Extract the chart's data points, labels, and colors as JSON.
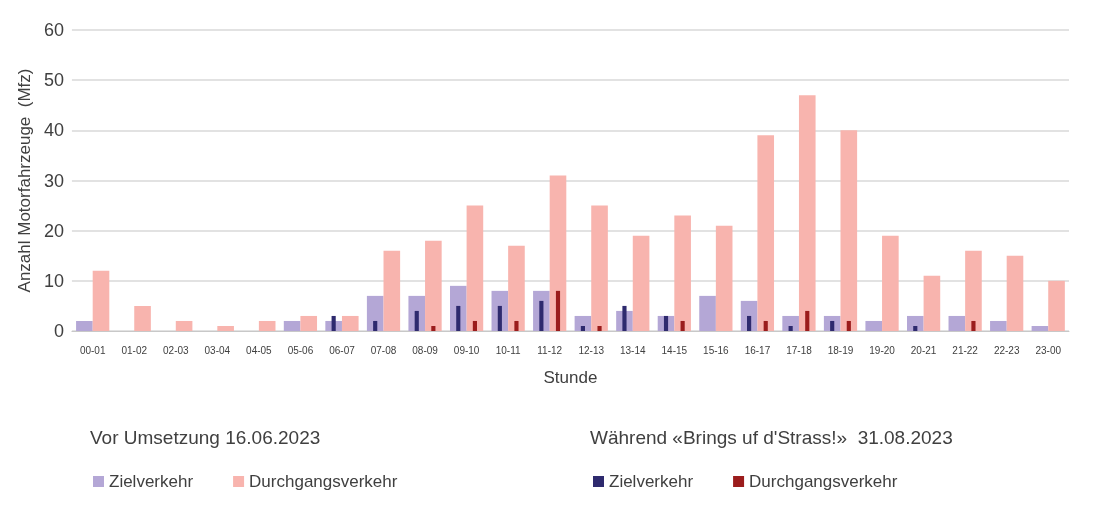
{
  "chart_data": {
    "type": "bar",
    "xlabel": "Stunde",
    "ylabel": "Anzahl Motorfahrzeuge  (Mfz)",
    "categories": [
      "00-01",
      "01-02",
      "02-03",
      "03-04",
      "04-05",
      "05-06",
      "06-07",
      "07-08",
      "08-09",
      "09-10",
      "10-11",
      "11-12",
      "12-13",
      "13-14",
      "14-15",
      "15-16",
      "16-17",
      "17-18",
      "18-19",
      "19-20",
      "20-21",
      "21-22",
      "22-23",
      "23-00"
    ],
    "series": [
      {
        "name": "Zielverkehr",
        "color": "#b4a7d6",
        "values": [
          2,
          0,
          0,
          0,
          0,
          2,
          2,
          7,
          7,
          9,
          8,
          8,
          3,
          4,
          3,
          7,
          6,
          3,
          3,
          2,
          3,
          3,
          2,
          1
        ]
      },
      {
        "name": "Durchgangsverkehr",
        "color": "#f8b4ae",
        "values": [
          12,
          5,
          2,
          1,
          2,
          3,
          3,
          16,
          18,
          25,
          17,
          31,
          25,
          19,
          23,
          21,
          39,
          47,
          40,
          19,
          11,
          16,
          15,
          10
        ]
      },
      {
        "name": "Zielverkehr",
        "color": "#2e2a6e",
        "values": [
          0,
          0,
          0,
          0,
          0,
          0,
          3,
          2,
          4,
          5,
          5,
          6,
          1,
          5,
          3,
          0,
          3,
          1,
          2,
          0,
          1,
          0,
          0,
          0
        ]
      },
      {
        "name": "Durchgangsverkehr",
        "color": "#9b1c1c",
        "values": [
          0,
          0,
          0,
          0,
          0,
          0,
          0,
          0,
          1,
          2,
          2,
          8,
          1,
          0,
          2,
          0,
          2,
          4,
          2,
          0,
          0,
          2,
          0,
          0
        ]
      }
    ],
    "annotations": [
      "Vor Umsetzung 16.06.2023",
      "Während «Brings uf d'Strass!»  31.08.2023"
    ],
    "ylim": [
      0,
      60
    ],
    "yticks": [
      0,
      10,
      20,
      30,
      40,
      50,
      60
    ],
    "grid": "y",
    "legend": "bottom"
  }
}
